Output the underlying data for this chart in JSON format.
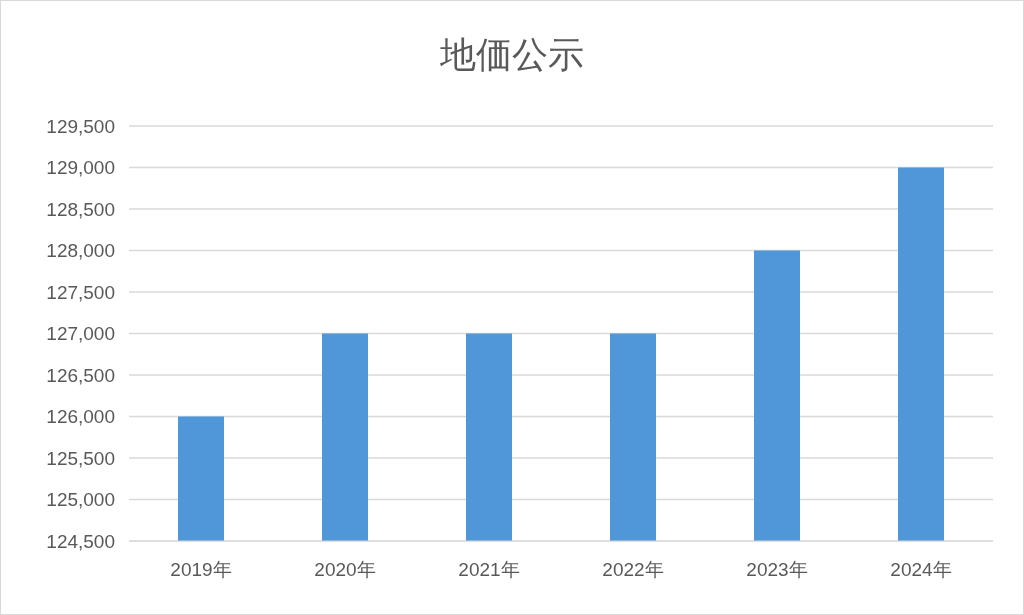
{
  "chart_data": {
    "type": "bar",
    "title": "地価公示",
    "categories": [
      "2019年",
      "2020年",
      "2021年",
      "2022年",
      "2023年",
      "2024年"
    ],
    "values": [
      126000,
      127000,
      127000,
      127000,
      128000,
      129000
    ],
    "color": "#4f97d9",
    "ylim": [
      124500,
      129500
    ],
    "yticks": [
      {
        "value": 124500,
        "label": "124,500"
      },
      {
        "value": 125000,
        "label": "125,000"
      },
      {
        "value": 125500,
        "label": "125,500"
      },
      {
        "value": 126000,
        "label": "126,000"
      },
      {
        "value": 126500,
        "label": "126,500"
      },
      {
        "value": 127000,
        "label": "127,000"
      },
      {
        "value": 127500,
        "label": "127,500"
      },
      {
        "value": 128000,
        "label": "128,000"
      },
      {
        "value": 128500,
        "label": "128,500"
      },
      {
        "value": 129000,
        "label": "129,000"
      },
      {
        "value": 129500,
        "label": "129,500"
      }
    ],
    "grid": "y"
  }
}
